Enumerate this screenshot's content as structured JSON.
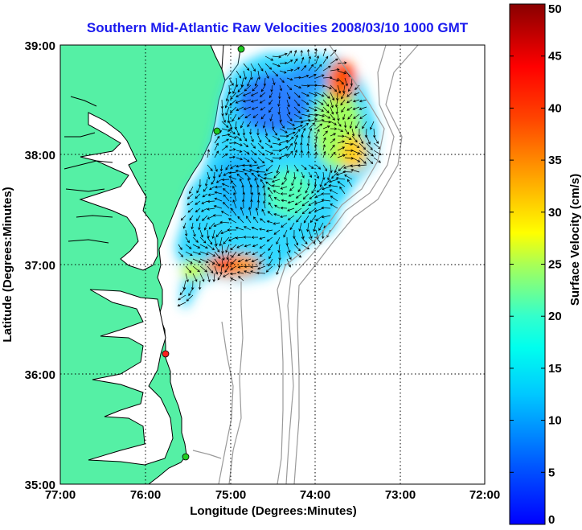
{
  "title": "Southern Mid-Atlantic Raw Velocities 2008/03/10 1000 GMT",
  "map": {
    "xlabel": "Longitude (Degrees:Minutes)",
    "ylabel": "Latitude (Degrees:Minutes)",
    "x_ticks": [
      "77:00",
      "76:00",
      "75:00",
      "74:00",
      "73:00",
      "72:00"
    ],
    "y_ticks": [
      "39:00",
      "38:00",
      "37:00",
      "36:00",
      "35:00"
    ],
    "lon_range": [
      -77,
      -72
    ],
    "lat_range": [
      35,
      39
    ],
    "grid": "dotted",
    "colors": {
      "land": "#55f0a5",
      "ocean": "#ffffff",
      "coastline": "#000000",
      "bathymetry": "#9a9a9a",
      "vectors": "#000000",
      "grid": "#000000"
    },
    "stations": [
      {
        "color": "#22cc22"
      },
      {
        "color": "#22cc22"
      },
      {
        "color": "#ff2020"
      },
      {
        "color": "#22cc22"
      }
    ]
  },
  "colorbar": {
    "label": "Surface Velocity (cm/s)",
    "units": "cm/s",
    "min": 0,
    "max": 50,
    "ticks": [
      "0",
      "5",
      "10",
      "15",
      "20",
      "25",
      "30",
      "35",
      "40",
      "45",
      "50"
    ],
    "colormap": "jet"
  }
}
